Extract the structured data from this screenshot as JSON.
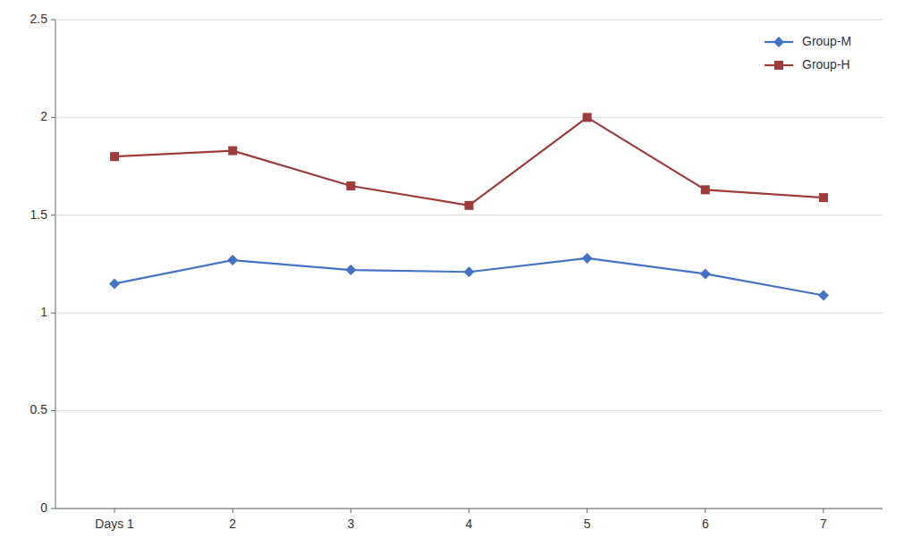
{
  "chart_data": {
    "type": "line",
    "categories": [
      "Days 1",
      "2",
      "3",
      "4",
      "5",
      "6",
      "7"
    ],
    "series": [
      {
        "name": "Group-M",
        "color": "#4472C4",
        "marker": "diamond",
        "line_style": "solid",
        "values": [
          1.15,
          1.27,
          1.22,
          1.21,
          1.28,
          1.2,
          1.09
        ]
      },
      {
        "name": "Group-H",
        "color": "#9E3B3B",
        "marker": "square",
        "line_style": "solid",
        "values": [
          1.8,
          1.83,
          1.65,
          1.55,
          2.0,
          1.63,
          1.59
        ]
      }
    ],
    "ylim": [
      0,
      2.5
    ],
    "yticks": [
      0,
      0.5,
      1,
      1.5,
      2,
      2.5
    ],
    "grid": true,
    "legend": "upper right"
  }
}
